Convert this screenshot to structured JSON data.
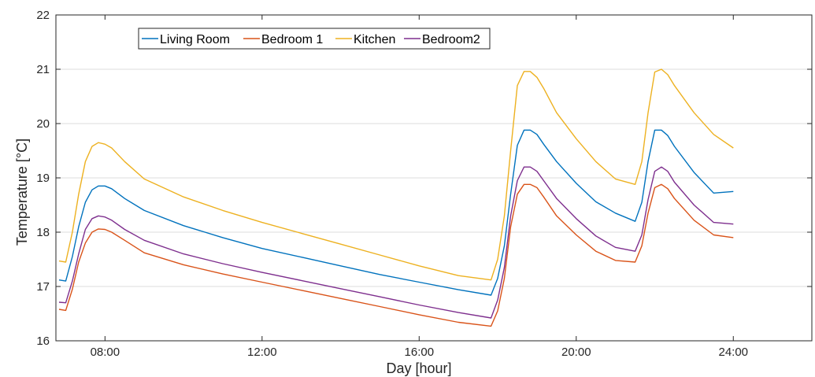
{
  "chart_data": {
    "type": "line",
    "title": "",
    "xlabel": "Day [hour]",
    "ylabel": "Temperature [°C]",
    "xlim": [
      6.75,
      26.0
    ],
    "ylim": [
      16,
      22
    ],
    "xticks": [
      {
        "value": 8,
        "label": "08:00"
      },
      {
        "value": 12,
        "label": "12:00"
      },
      {
        "value": 16,
        "label": "16:00"
      },
      {
        "value": 20,
        "label": "20:00"
      },
      {
        "value": 24,
        "label": "24:00"
      }
    ],
    "yticks": [
      {
        "value": 16,
        "label": "16"
      },
      {
        "value": 17,
        "label": "17"
      },
      {
        "value": 18,
        "label": "18"
      },
      {
        "value": 19,
        "label": "19"
      },
      {
        "value": 20,
        "label": "20"
      },
      {
        "value": 21,
        "label": "21"
      },
      {
        "value": 22,
        "label": "22"
      }
    ],
    "grid": "horizontal",
    "legend": {
      "placement": "top-left",
      "orientation": "horizontal"
    },
    "x": [
      6.83,
      7.0,
      7.17,
      7.33,
      7.5,
      7.67,
      7.83,
      8.0,
      8.17,
      8.5,
      9.0,
      10.0,
      11.0,
      12.0,
      13.0,
      14.0,
      15.0,
      16.0,
      17.0,
      17.83,
      18.0,
      18.17,
      18.33,
      18.5,
      18.67,
      18.83,
      19.0,
      19.17,
      19.5,
      20.0,
      20.5,
      21.0,
      21.5,
      21.67,
      21.83,
      22.0,
      22.17,
      22.33,
      22.5,
      23.0,
      23.5,
      24.0
    ],
    "series": [
      {
        "name": "Living Room",
        "color": "#0072BD",
        "values": [
          17.12,
          17.1,
          17.55,
          18.1,
          18.55,
          18.78,
          18.85,
          18.85,
          18.8,
          18.62,
          18.4,
          18.12,
          17.9,
          17.7,
          17.54,
          17.38,
          17.22,
          17.08,
          16.94,
          16.84,
          17.15,
          17.75,
          18.7,
          19.6,
          19.88,
          19.88,
          19.8,
          19.62,
          19.3,
          18.9,
          18.56,
          18.35,
          18.2,
          18.55,
          19.3,
          19.88,
          19.88,
          19.78,
          19.58,
          19.1,
          18.72,
          18.75
        ]
      },
      {
        "name": "Bedroom 1",
        "color": "#D95319",
        "values": [
          16.58,
          16.56,
          16.95,
          17.45,
          17.8,
          18.0,
          18.06,
          18.05,
          18.0,
          17.85,
          17.62,
          17.4,
          17.23,
          17.08,
          16.93,
          16.78,
          16.63,
          16.48,
          16.34,
          16.27,
          16.55,
          17.15,
          18.1,
          18.7,
          18.88,
          18.88,
          18.82,
          18.65,
          18.3,
          17.95,
          17.65,
          17.48,
          17.45,
          17.75,
          18.35,
          18.82,
          18.88,
          18.8,
          18.62,
          18.22,
          17.95,
          17.9
        ]
      },
      {
        "name": "Kitchen",
        "color": "#EDB120",
        "values": [
          17.47,
          17.45,
          18.0,
          18.7,
          19.3,
          19.58,
          19.65,
          19.62,
          19.55,
          19.3,
          18.98,
          18.65,
          18.4,
          18.18,
          17.98,
          17.78,
          17.58,
          17.38,
          17.2,
          17.12,
          17.5,
          18.3,
          19.5,
          20.7,
          20.96,
          20.96,
          20.85,
          20.65,
          20.2,
          19.72,
          19.3,
          18.98,
          18.88,
          19.3,
          20.2,
          20.95,
          21.0,
          20.9,
          20.7,
          20.2,
          19.8,
          19.55
        ]
      },
      {
        "name": "Bedroom2",
        "color": "#7E2F8E",
        "values": [
          16.71,
          16.7,
          17.1,
          17.6,
          18.05,
          18.25,
          18.3,
          18.28,
          18.22,
          18.05,
          17.85,
          17.6,
          17.42,
          17.26,
          17.11,
          16.96,
          16.81,
          16.66,
          16.52,
          16.42,
          16.75,
          17.35,
          18.3,
          18.95,
          19.2,
          19.2,
          19.12,
          18.95,
          18.62,
          18.25,
          17.93,
          17.72,
          17.65,
          17.95,
          18.6,
          19.12,
          19.2,
          19.12,
          18.92,
          18.5,
          18.18,
          18.15
        ]
      }
    ]
  }
}
